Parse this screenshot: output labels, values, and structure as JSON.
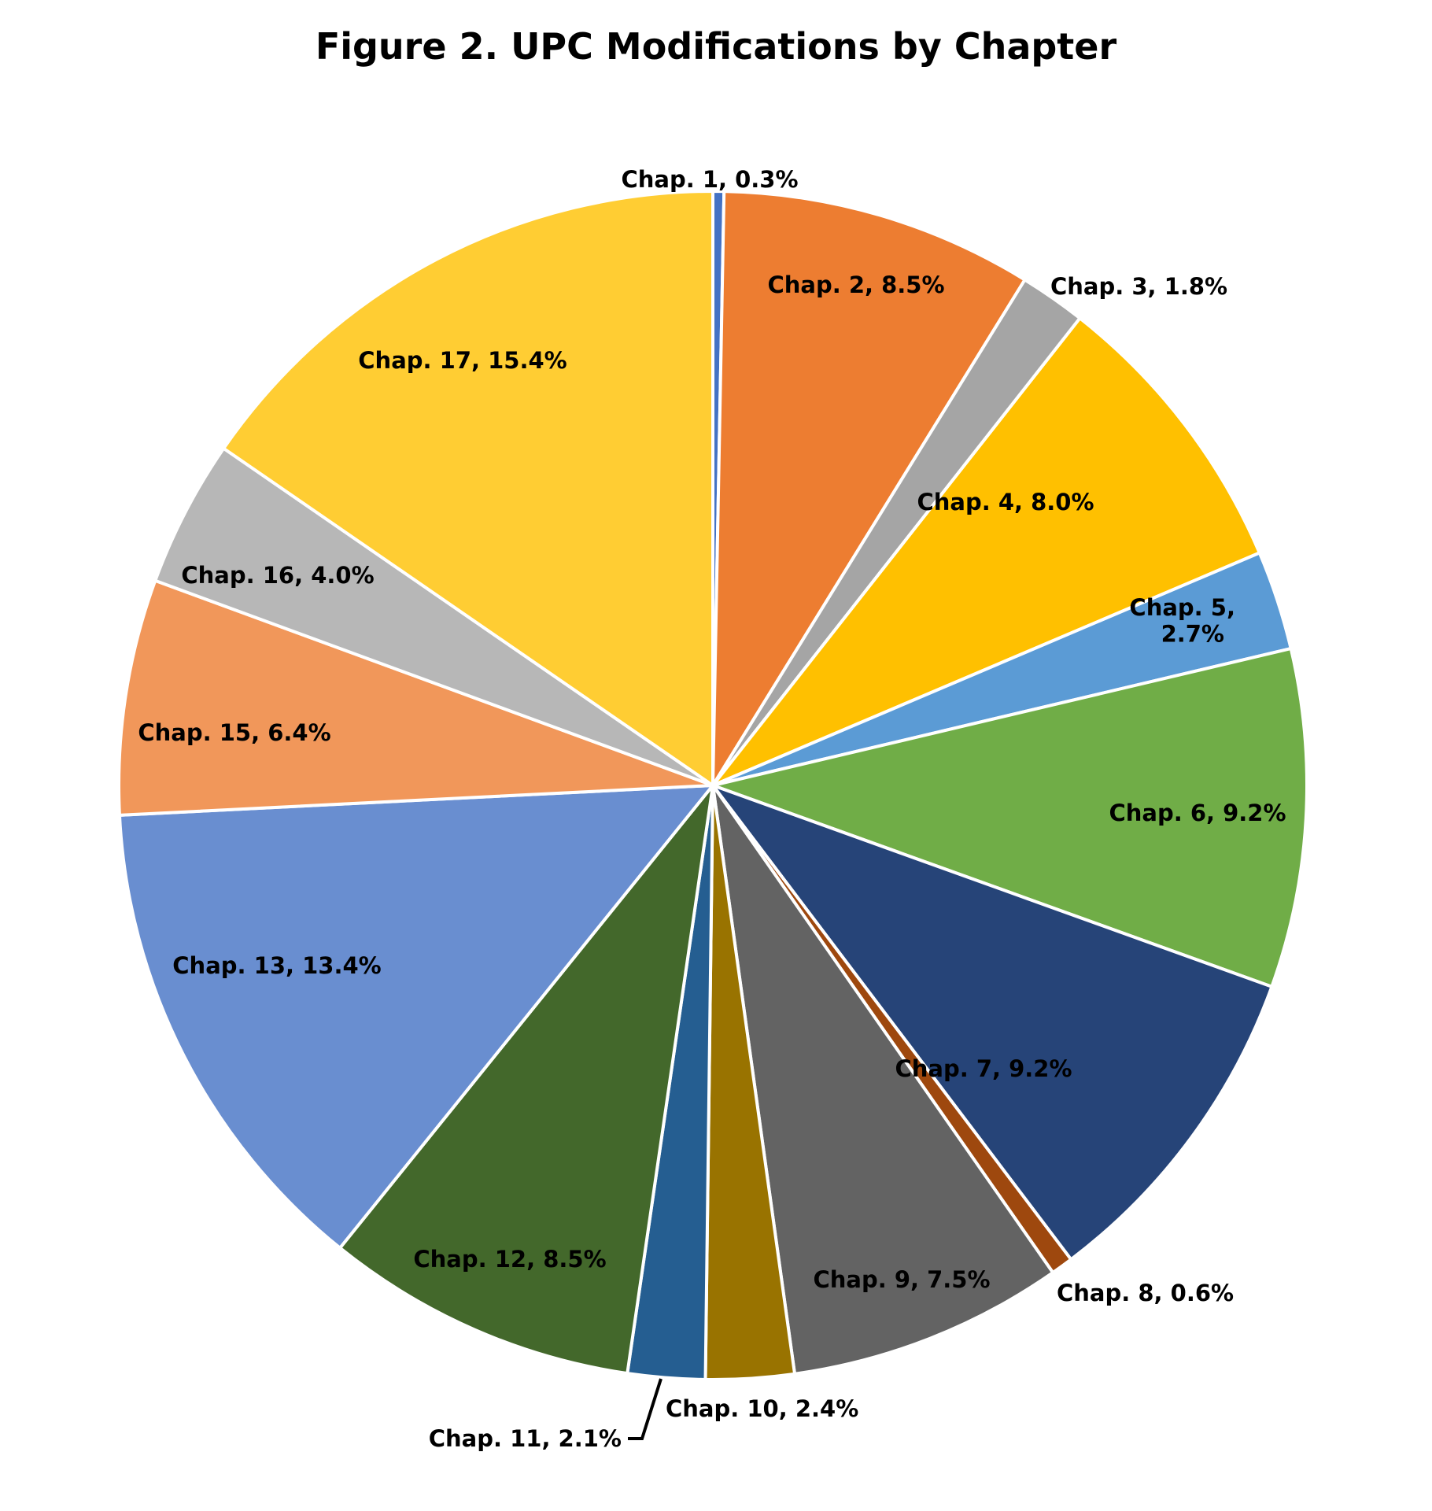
{
  "chart_data": {
    "type": "pie",
    "title": "Figure 2. UPC Modifications by Chapter",
    "slices": [
      {
        "label": "Chap. 1, 0.3%",
        "value": 0.3,
        "color": "#4472C4"
      },
      {
        "label": "Chap. 2, 8.5%",
        "value": 8.5,
        "color": "#ED7D31"
      },
      {
        "label": "Chap. 3, 1.8%",
        "value": 1.8,
        "color": "#A5A5A5"
      },
      {
        "label": "Chap. 4, 8.0%",
        "value": 8.0,
        "color": "#FFC000"
      },
      {
        "label": "Chap. 5,",
        "label2": "2.7%",
        "value": 2.7,
        "color": "#5B9BD5"
      },
      {
        "label": "Chap. 6, 9.2%",
        "value": 9.2,
        "color": "#70AD47"
      },
      {
        "label": "Chap. 7, 9.2%",
        "value": 9.2,
        "color": "#264478"
      },
      {
        "label": "Chap. 8, 0.6%",
        "value": 0.6,
        "color": "#9E480E"
      },
      {
        "label": "Chap. 9, 7.5%",
        "value": 7.5,
        "color": "#636363"
      },
      {
        "label": "Chap. 10, 2.4%",
        "value": 2.4,
        "color": "#997300"
      },
      {
        "label": "Chap. 11, 2.1%",
        "value": 2.1,
        "color": "#255E91"
      },
      {
        "label": "Chap. 12, 8.5%",
        "value": 8.5,
        "color": "#43682B"
      },
      {
        "label": "Chap. 13, 13.4%",
        "value": 13.4,
        "color": "#698ED0"
      },
      {
        "label": "Chap. 15, 6.4%",
        "value": 6.4,
        "color": "#F1975A"
      },
      {
        "label": "Chap. 16, 4.0%",
        "value": 4.0,
        "color": "#B7B7B7"
      },
      {
        "label": "Chap. 17, 15.4%",
        "value": 15.4,
        "color": "#FFCD33"
      }
    ]
  }
}
